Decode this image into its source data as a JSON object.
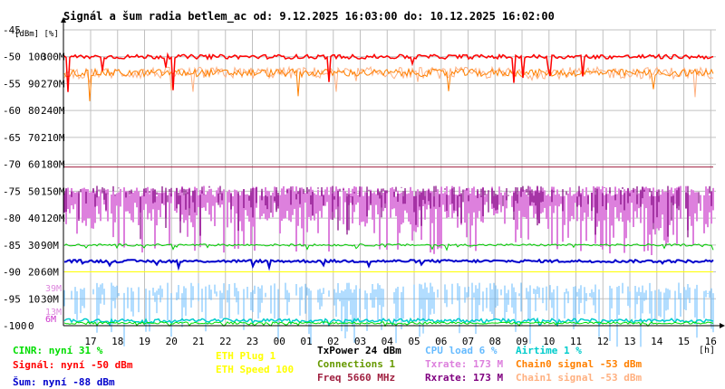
{
  "chart_data": {
    "type": "line",
    "title": "Signál a šum radia betlem_ac od: 9.12.2025 16:03:00 do: 10.12.2025 16:02:00",
    "unit_label": "[dBm] [%]",
    "xunit_label": "[h]",
    "x_ticks": [
      "17",
      "18",
      "19",
      "20",
      "21",
      "22",
      "23",
      "00",
      "01",
      "02",
      "03",
      "04",
      "05",
      "06",
      "07",
      "08",
      "09",
      "10",
      "11",
      "12",
      "13",
      "14",
      "15",
      "16"
    ],
    "y_scale_dbm": [
      "-45",
      "-50",
      "-55",
      "-60",
      "-65",
      "-70",
      "-75",
      "-80",
      "-85",
      "-90",
      "-95",
      "-100"
    ],
    "y_scale_pct": [
      "100",
      "90",
      "80",
      "70",
      "60",
      "50",
      "40",
      "30",
      "20",
      "10",
      "0"
    ],
    "y_scale_rate": [
      "300M",
      "270M",
      "240M",
      "210M",
      "180M",
      "150M",
      "120M",
      "90M",
      "60M",
      "30M",
      "0M"
    ],
    "cpu_scale_labels": [
      "39M",
      "13M",
      "6M"
    ],
    "ylim_dbm": [
      -100,
      -45
    ],
    "grid": true,
    "series": [
      {
        "key": "signal",
        "dbm_base": -50,
        "color": "#ff0000"
      },
      {
        "key": "chain0",
        "dbm_base": -53,
        "color": "#ff8000"
      },
      {
        "key": "chain1",
        "dbm_base": -53,
        "color": "#ffb080"
      },
      {
        "key": "freq",
        "dbm_base": -70.5,
        "color": "#a02040"
      },
      {
        "key": "rxrate",
        "dbm_base": -75,
        "color": "#800080"
      },
      {
        "key": "txrate",
        "dbm_base": -77,
        "color": "#dd80dd"
      },
      {
        "key": "connections",
        "dbm_base": -85,
        "color": "#00cc00"
      },
      {
        "key": "noise",
        "dbm_base": -88,
        "color": "#0000cc"
      },
      {
        "key": "eth_speed",
        "dbm_base": -90,
        "color": "#ffff00"
      },
      {
        "key": "cpu",
        "dbm_base": -97,
        "color": "#66bbff"
      },
      {
        "key": "airtime",
        "dbm_base": -99,
        "color": "#00cccc"
      },
      {
        "key": "cinr",
        "dbm_base": -99.5,
        "color": "#00dd00"
      }
    ]
  },
  "legend": [
    {
      "id": "cinr",
      "text": "CINR: nyní 31 %",
      "color": "#00dd00"
    },
    {
      "id": "signal",
      "text": "Signál: nyní -50 dBm",
      "color": "#ff0000"
    },
    {
      "id": "noise",
      "text": "Šum: nyní -88 dBm",
      "color": "#0000cc"
    },
    {
      "id": "eth_plug",
      "text": "ETH Plug 1",
      "color": "#ffff00"
    },
    {
      "id": "eth_speed",
      "text": "ETH Speed 100",
      "color": "#ffff00"
    },
    {
      "id": "txpower",
      "text": "TxPower 24 dBm",
      "color": "#000000"
    },
    {
      "id": "connections",
      "text": "Connections 1",
      "color": "#669900"
    },
    {
      "id": "freq",
      "text": "Freq 5660 MHz",
      "color": "#a02040"
    },
    {
      "id": "cpu",
      "text": "CPU load 6 %",
      "color": "#66bbff"
    },
    {
      "id": "txrate",
      "text": "Txrate: 173 M",
      "color": "#dd80dd"
    },
    {
      "id": "rxrate",
      "text": "Rxrate: 173 M",
      "color": "#800080"
    },
    {
      "id": "airtime",
      "text": "Airtime 1 %",
      "color": "#00cccc"
    },
    {
      "id": "chain0",
      "text": "Chain0 signal -53 dBm",
      "color": "#ff8000"
    },
    {
      "id": "chain1",
      "text": "Chain1 signal -53 dBm",
      "color": "#ffb080"
    }
  ]
}
